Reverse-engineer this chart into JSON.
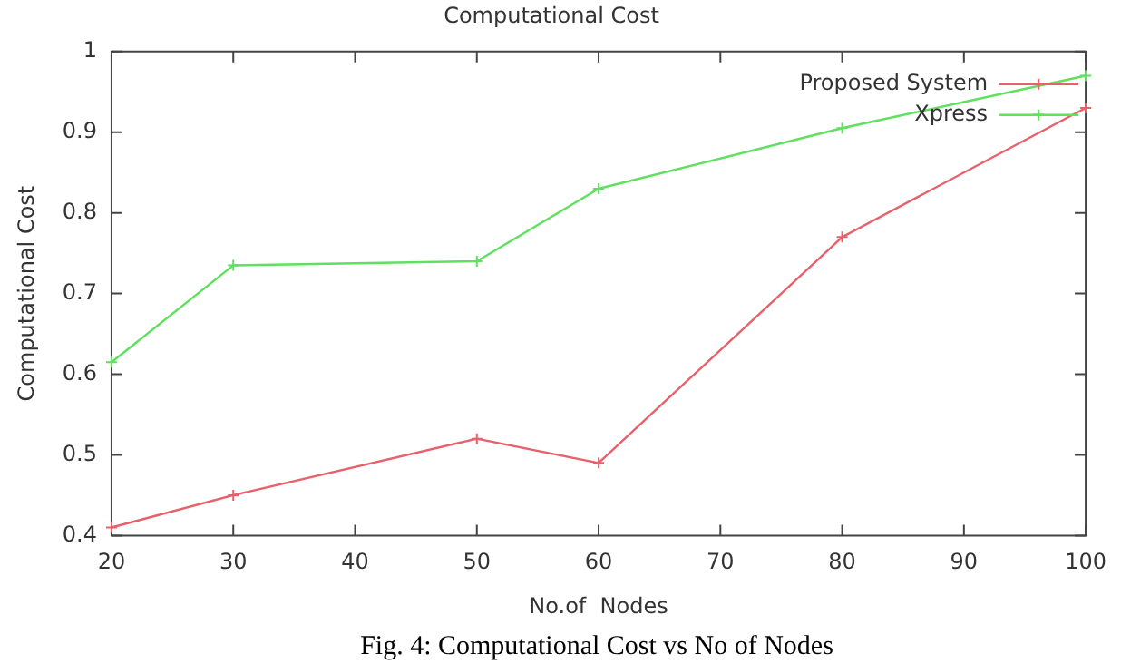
{
  "chart_data": {
    "type": "line",
    "title": "Computational Cost",
    "xlabel": "No.of  Nodes",
    "ylabel": "Computational Cost",
    "x": [
      20,
      30,
      50,
      60,
      80,
      100
    ],
    "series": [
      {
        "name": "Proposed System",
        "color": "#e8606a",
        "values": [
          0.41,
          0.45,
          0.52,
          0.49,
          0.77,
          0.93
        ]
      },
      {
        "name": "Xpress",
        "color": "#5fe05f",
        "values": [
          0.615,
          0.735,
          0.74,
          0.83,
          0.905,
          0.97
        ]
      }
    ],
    "xlim": [
      20,
      100
    ],
    "xticks": [
      20,
      30,
      40,
      50,
      60,
      70,
      80,
      90,
      100
    ],
    "ylim": [
      0.4,
      1
    ],
    "yticks": [
      0.4,
      0.5,
      0.6,
      0.7,
      0.8,
      0.9,
      1
    ],
    "grid": false,
    "legend": "top right",
    "marker": "cross",
    "line_style": "solid",
    "annotations": [
      "Fig. 4: Computational Cost vs No of Nodes"
    ]
  }
}
